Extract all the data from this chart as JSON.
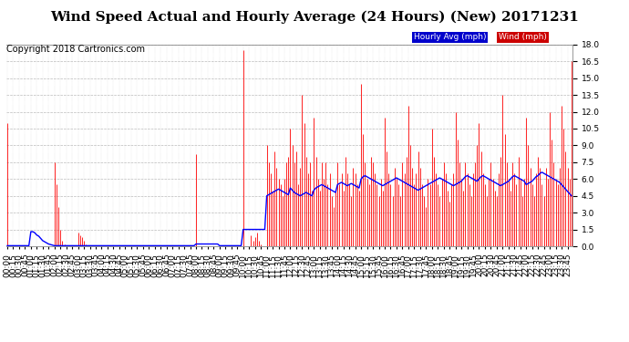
{
  "title": "Wind Speed Actual and Hourly Average (24 Hours) (New) 20171231",
  "copyright": "Copyright 2018 Cartronics.com",
  "ylim": [
    0,
    18.0
  ],
  "yticks": [
    0.0,
    1.5,
    3.0,
    4.5,
    6.0,
    7.5,
    9.0,
    10.5,
    12.0,
    13.5,
    15.0,
    16.5,
    18.0
  ],
  "legend_hourly_label": "Hourly Avg (mph)",
  "legend_wind_label": "Wind (mph)",
  "legend_hourly_bg": "#0000cc",
  "legend_wind_bg": "#cc0000",
  "bg_color": "#ffffff",
  "plot_bg_color": "#ffffff",
  "grid_color": "#aaaaaa",
  "bar_color": "#ff0000",
  "line_color": "#0000ff",
  "title_fontsize": 11,
  "copyright_fontsize": 7,
  "tick_fontsize": 6.5,
  "num_points": 288,
  "wind_data": [
    11.0,
    0.0,
    0.0,
    0.0,
    0.0,
    0.0,
    0.0,
    0.0,
    0.0,
    0.0,
    0.0,
    0.0,
    0.0,
    0.0,
    0.0,
    0.0,
    0.0,
    0.0,
    0.0,
    0.0,
    0.0,
    0.0,
    0.0,
    0.0,
    7.5,
    5.5,
    3.5,
    1.5,
    0.5,
    0.2,
    0.0,
    0.0,
    0.0,
    0.0,
    0.0,
    0.0,
    1.2,
    1.0,
    0.8,
    0.5,
    0.2,
    0.0,
    0.0,
    0.0,
    0.0,
    0.0,
    0.0,
    0.0,
    0.0,
    0.0,
    0.0,
    0.0,
    0.0,
    0.0,
    0.0,
    0.0,
    0.0,
    0.0,
    0.0,
    0.0,
    0.0,
    0.0,
    0.0,
    0.0,
    0.0,
    0.0,
    0.0,
    0.0,
    0.0,
    0.0,
    0.0,
    0.0,
    0.0,
    0.0,
    0.0,
    0.0,
    0.0,
    0.0,
    0.0,
    0.0,
    0.0,
    0.0,
    0.0,
    0.0,
    0.0,
    0.0,
    0.0,
    0.0,
    0.0,
    0.0,
    0.0,
    0.0,
    0.0,
    0.0,
    0.0,
    0.0,
    8.2,
    0.0,
    0.0,
    0.0,
    0.0,
    0.0,
    0.0,
    0.0,
    0.0,
    0.0,
    0.0,
    0.0,
    0.0,
    0.0,
    0.0,
    0.0,
    0.0,
    0.0,
    0.0,
    0.0,
    0.0,
    0.0,
    0.0,
    0.0,
    17.5,
    0.0,
    0.0,
    0.0,
    1.0,
    0.5,
    0.8,
    1.2,
    0.5,
    0.2,
    0.0,
    0.0,
    9.0,
    7.5,
    6.5,
    5.0,
    8.5,
    7.0,
    6.0,
    5.5,
    4.5,
    6.0,
    7.5,
    8.0,
    10.5,
    9.0,
    7.5,
    8.5,
    5.5,
    7.0,
    13.5,
    11.0,
    8.0,
    6.5,
    7.5,
    5.0,
    11.5,
    8.0,
    6.0,
    5.0,
    7.5,
    6.0,
    7.5,
    5.5,
    6.5,
    4.5,
    3.5,
    5.0,
    7.5,
    5.5,
    6.5,
    5.0,
    8.0,
    6.5,
    5.5,
    4.5,
    7.0,
    6.5,
    5.5,
    5.0,
    14.5,
    10.0,
    7.5,
    6.0,
    5.5,
    8.0,
    7.5,
    6.5,
    5.5,
    4.5,
    6.0,
    5.0,
    11.5,
    8.5,
    6.5,
    5.5,
    4.5,
    7.0,
    6.0,
    5.5,
    4.5,
    7.5,
    6.5,
    8.0,
    12.5,
    9.0,
    7.0,
    5.5,
    6.5,
    8.5,
    7.0,
    5.5,
    4.5,
    3.5,
    6.0,
    5.5,
    10.5,
    8.0,
    6.5,
    5.5,
    4.5,
    6.0,
    7.5,
    6.5,
    5.0,
    4.0,
    5.5,
    6.5,
    12.0,
    9.5,
    7.5,
    6.0,
    5.0,
    7.5,
    6.5,
    5.5,
    4.5,
    6.5,
    7.5,
    9.0,
    11.0,
    8.5,
    6.5,
    5.5,
    4.5,
    6.0,
    7.5,
    6.0,
    5.0,
    4.5,
    6.5,
    8.0,
    13.5,
    10.0,
    7.5,
    6.0,
    5.0,
    7.5,
    6.5,
    5.5,
    8.0,
    6.0,
    4.5,
    6.0,
    11.5,
    9.0,
    7.0,
    5.5,
    4.5,
    6.5,
    8.0,
    7.0,
    5.5,
    4.5,
    7.0,
    6.0,
    12.0,
    9.5,
    7.5,
    6.0,
    5.5,
    7.0,
    12.5,
    10.5,
    8.5,
    7.0,
    6.0,
    16.5
  ],
  "hourly_avg_data": [
    0.05,
    0.05,
    0.05,
    0.05,
    0.05,
    0.05,
    0.05,
    0.05,
    0.05,
    0.05,
    0.05,
    0.05,
    1.3,
    1.3,
    1.2,
    1.0,
    0.9,
    0.7,
    0.5,
    0.4,
    0.3,
    0.2,
    0.15,
    0.1,
    0.05,
    0.05,
    0.05,
    0.05,
    0.05,
    0.05,
    0.05,
    0.05,
    0.05,
    0.05,
    0.05,
    0.05,
    0.05,
    0.05,
    0.05,
    0.05,
    0.05,
    0.05,
    0.05,
    0.05,
    0.05,
    0.05,
    0.05,
    0.05,
    0.05,
    0.05,
    0.05,
    0.05,
    0.05,
    0.05,
    0.05,
    0.05,
    0.05,
    0.05,
    0.05,
    0.05,
    0.05,
    0.05,
    0.05,
    0.05,
    0.05,
    0.05,
    0.05,
    0.05,
    0.05,
    0.05,
    0.05,
    0.05,
    0.05,
    0.05,
    0.05,
    0.05,
    0.05,
    0.05,
    0.05,
    0.05,
    0.05,
    0.05,
    0.05,
    0.05,
    0.05,
    0.05,
    0.05,
    0.05,
    0.05,
    0.05,
    0.05,
    0.05,
    0.05,
    0.05,
    0.05,
    0.05,
    0.2,
    0.2,
    0.2,
    0.2,
    0.2,
    0.2,
    0.2,
    0.2,
    0.2,
    0.2,
    0.2,
    0.2,
    0.05,
    0.05,
    0.05,
    0.05,
    0.05,
    0.05,
    0.05,
    0.05,
    0.05,
    0.05,
    0.05,
    0.05,
    1.5,
    1.5,
    1.5,
    1.5,
    1.5,
    1.5,
    1.5,
    1.5,
    1.5,
    1.5,
    1.5,
    1.5,
    4.5,
    4.6,
    4.7,
    4.8,
    4.9,
    5.0,
    5.1,
    5.0,
    4.9,
    4.8,
    4.7,
    4.6,
    5.2,
    5.0,
    4.8,
    4.7,
    4.6,
    4.5,
    4.6,
    4.7,
    4.8,
    4.7,
    4.6,
    4.5,
    5.0,
    5.2,
    5.3,
    5.4,
    5.5,
    5.4,
    5.3,
    5.2,
    5.1,
    5.0,
    4.9,
    4.8,
    5.5,
    5.6,
    5.7,
    5.6,
    5.5,
    5.4,
    5.5,
    5.6,
    5.5,
    5.4,
    5.3,
    5.2,
    6.0,
    6.2,
    6.3,
    6.2,
    6.1,
    6.0,
    5.9,
    5.8,
    5.7,
    5.6,
    5.5,
    5.4,
    5.5,
    5.6,
    5.7,
    5.8,
    5.9,
    6.0,
    6.1,
    6.0,
    5.9,
    5.8,
    5.7,
    5.6,
    5.5,
    5.4,
    5.3,
    5.2,
    5.1,
    5.0,
    5.1,
    5.2,
    5.3,
    5.4,
    5.5,
    5.6,
    5.7,
    5.8,
    5.9,
    6.0,
    6.1,
    6.0,
    5.9,
    5.8,
    5.7,
    5.6,
    5.5,
    5.4,
    5.5,
    5.6,
    5.7,
    5.8,
    6.0,
    6.2,
    6.3,
    6.2,
    6.1,
    6.0,
    5.9,
    5.8,
    6.0,
    6.2,
    6.3,
    6.2,
    6.1,
    6.0,
    5.9,
    5.8,
    5.7,
    5.6,
    5.5,
    5.4,
    5.5,
    5.6,
    5.7,
    5.8,
    6.0,
    6.2,
    6.3,
    6.2,
    6.1,
    6.0,
    5.9,
    5.8,
    5.5,
    5.6,
    5.7,
    5.8,
    6.0,
    6.2,
    6.3,
    6.5,
    6.6,
    6.5,
    6.4,
    6.3,
    6.2,
    6.1,
    6.0,
    5.9,
    5.8,
    5.7,
    5.5,
    5.3,
    5.1,
    4.9,
    4.7,
    4.5
  ]
}
